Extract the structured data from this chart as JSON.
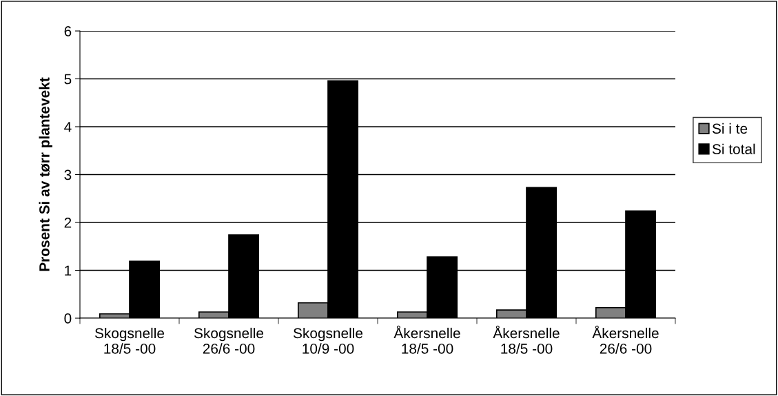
{
  "chart_data": {
    "type": "bar",
    "ylabel": "Prosent Si av tørr plantevekt",
    "categories": [
      "Skogsnelle\n18/5 -00",
      "Skogsnelle\n26/6 -00",
      "Skogsnelle\n10/9 -00",
      "Åkersnelle\n18/5 -00",
      "Åkersnelle\n18/5 -00",
      "Åkersnelle\n26/6 -00"
    ],
    "series": [
      {
        "name": "Si i te",
        "color": "#808080",
        "values": [
          0.09,
          0.13,
          0.32,
          0.13,
          0.17,
          0.22
        ]
      },
      {
        "name": "Si total",
        "color": "#000000",
        "values": [
          1.19,
          1.74,
          4.96,
          1.28,
          2.73,
          2.24
        ]
      }
    ],
    "ylim": [
      0,
      6
    ],
    "yticks": [
      0,
      1,
      2,
      3,
      4,
      5,
      6
    ],
    "grid": "y",
    "legend": "right"
  }
}
